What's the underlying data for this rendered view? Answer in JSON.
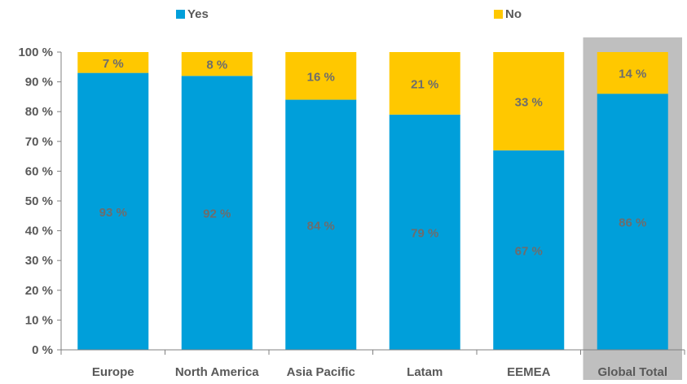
{
  "chart_data": {
    "type": "bar",
    "stacked": true,
    "percent_stacked": true,
    "categories": [
      "Europe",
      "North America",
      "Asia Pacific",
      "Latam",
      "EEMEA",
      "Global Total"
    ],
    "series": [
      {
        "name": "Yes",
        "values": [
          93,
          92,
          84,
          79,
          67,
          86
        ],
        "color": "#009fda",
        "labels": [
          "93 %",
          "92 %",
          "84 %",
          "79 %",
          "67 %",
          "86 %"
        ]
      },
      {
        "name": "No",
        "values": [
          7,
          8,
          16,
          21,
          33,
          14
        ],
        "color": "#ffc800",
        "labels": [
          "7 %",
          "8 %",
          "16 %",
          "21 %",
          "33 %",
          "14 %"
        ]
      }
    ],
    "ylim": [
      0,
      100
    ],
    "yticks": [
      {
        "value": 0,
        "label": "0 %"
      },
      {
        "value": 10,
        "label": "10 %"
      },
      {
        "value": 20,
        "label": "20 %"
      },
      {
        "value": 30,
        "label": "30 %"
      },
      {
        "value": 40,
        "label": "40 %"
      },
      {
        "value": 50,
        "label": "50 %"
      },
      {
        "value": 60,
        "label": "60 %"
      },
      {
        "value": 70,
        "label": "70 %"
      },
      {
        "value": 80,
        "label": "80 %"
      },
      {
        "value": 90,
        "label": "90 %"
      },
      {
        "value": 100,
        "label": "100 %"
      }
    ],
    "highlighted_category": "Global Total",
    "highlight_color": "#bfbfbf",
    "legend_position": "top",
    "grid": false,
    "title": "",
    "xlabel": "",
    "ylabel": ""
  }
}
